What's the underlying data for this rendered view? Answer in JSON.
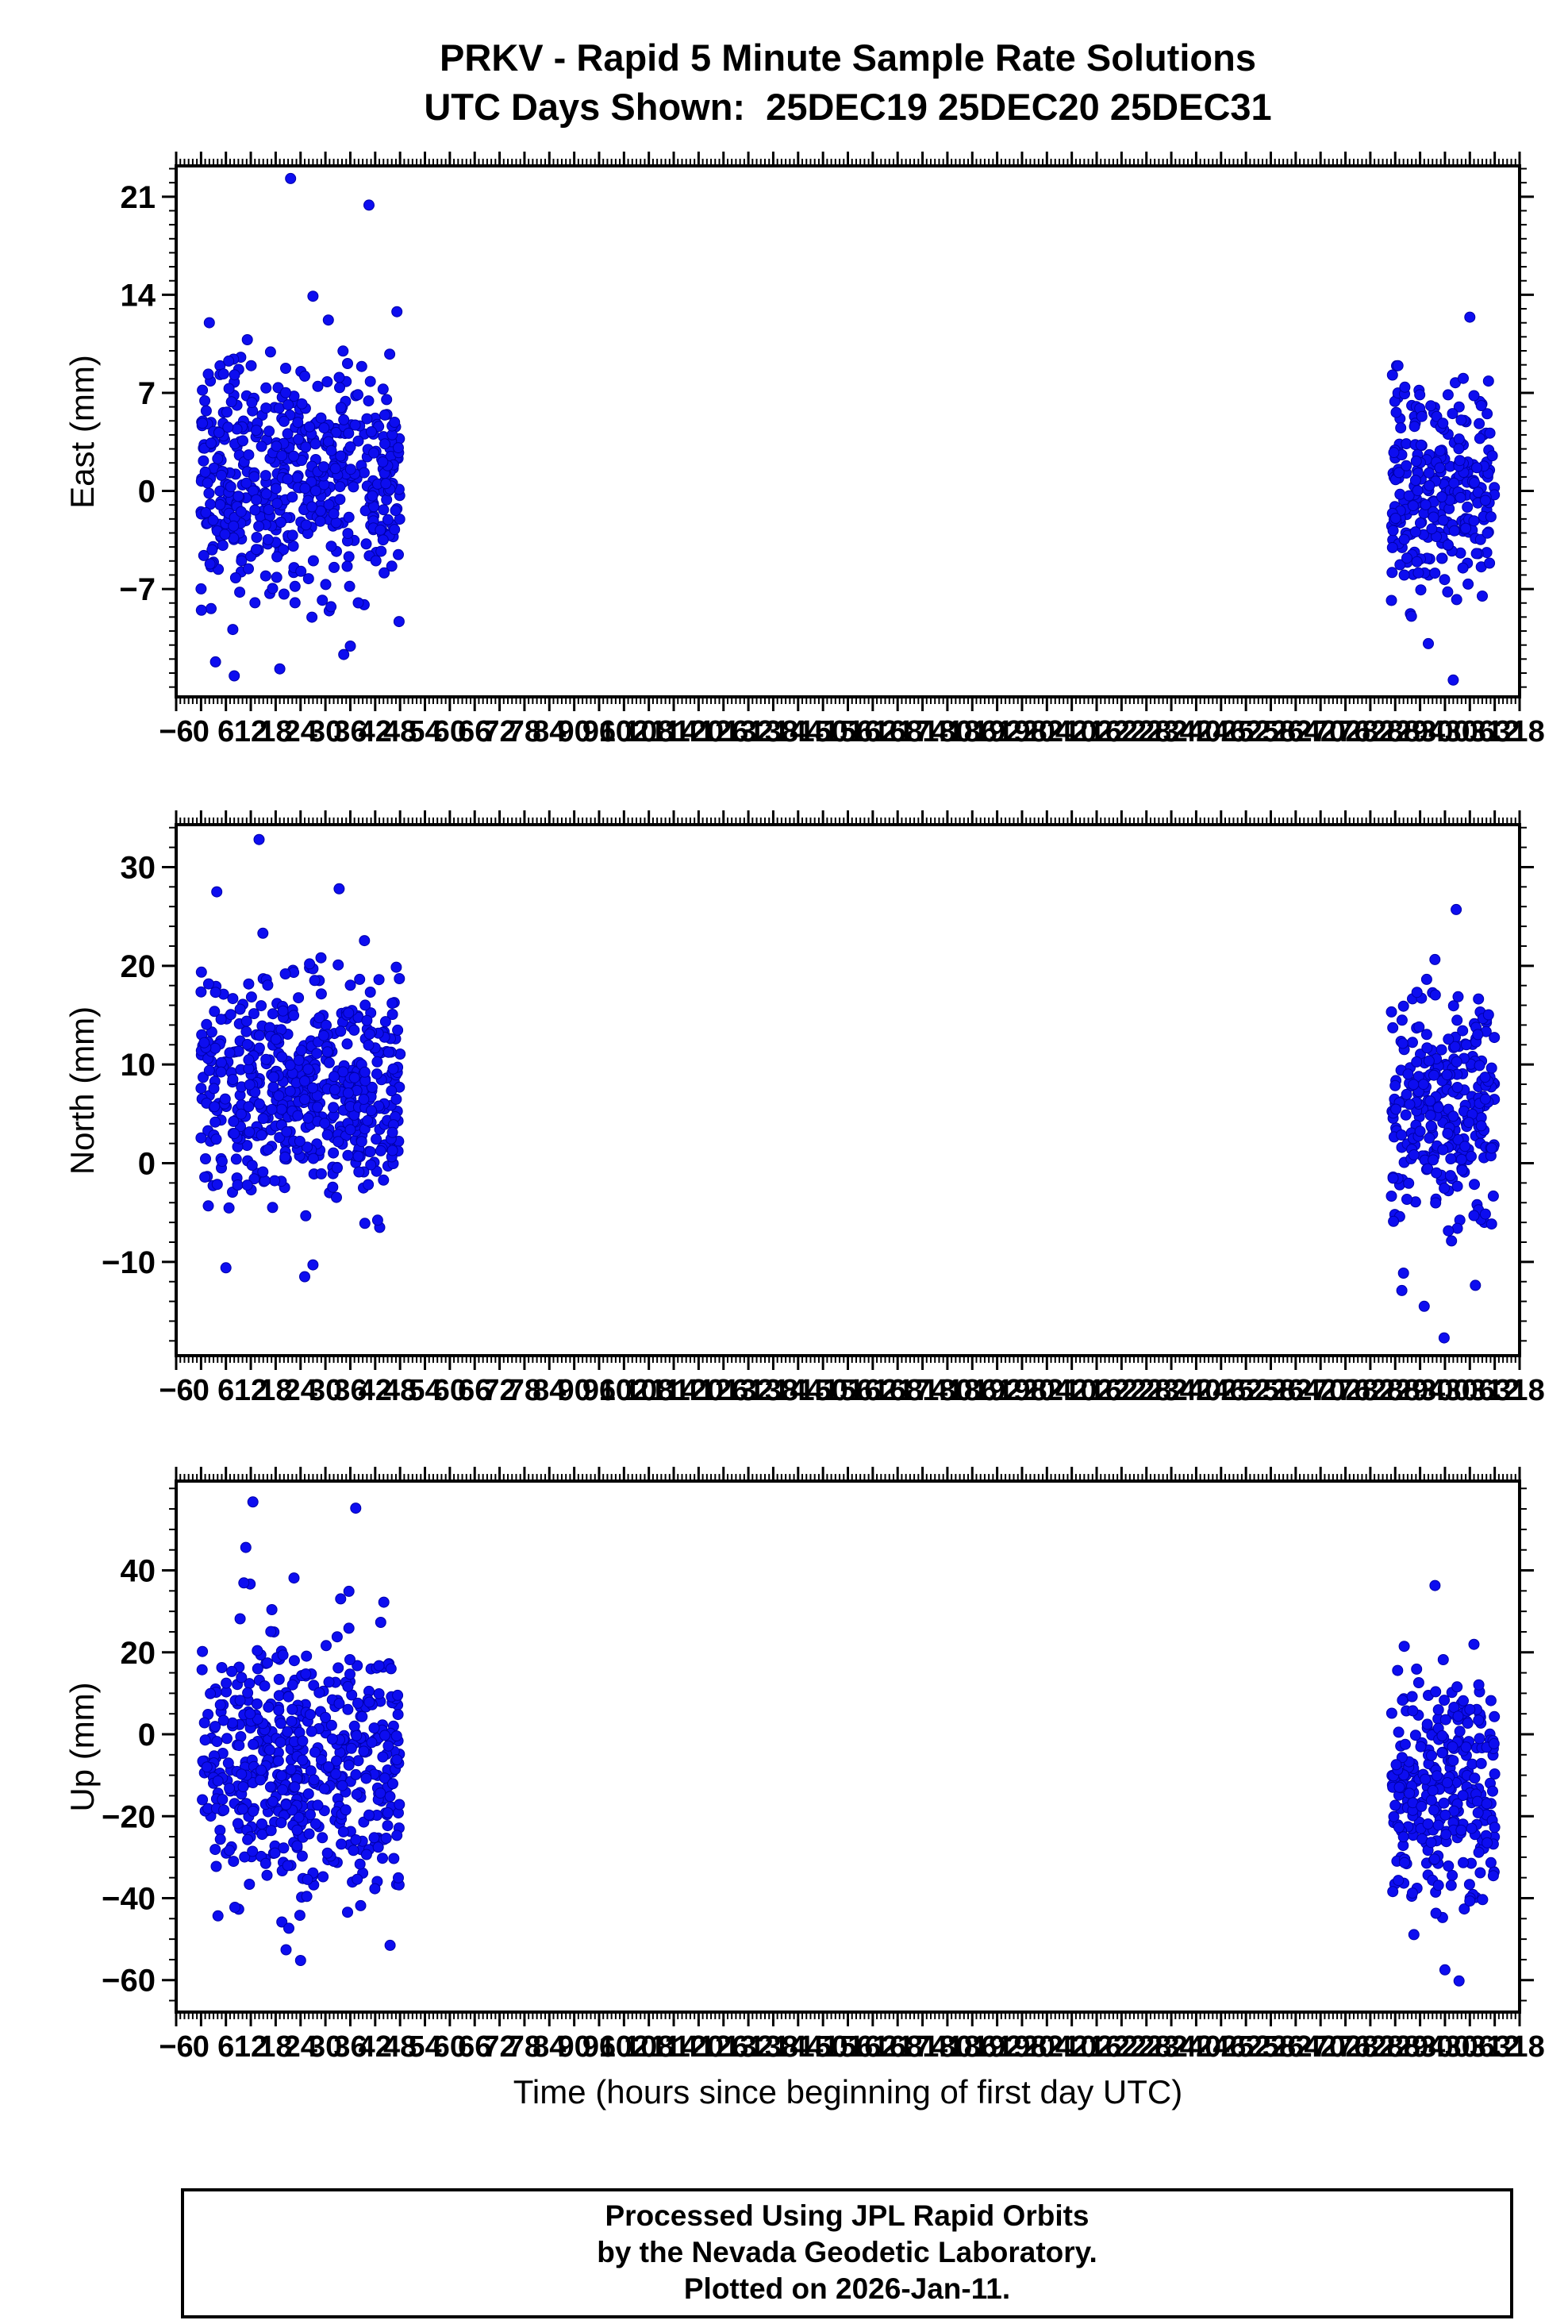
{
  "title": {
    "line1": "PRKV - Rapid 5 Minute Sample Rate Solutions",
    "line2": "UTC Days Shown:  25DEC19 25DEC20 25DEC31"
  },
  "footer": {
    "line1": "Processed Using JPL Rapid Orbits",
    "line2": "by the Nevada Geodetic Laboratory.",
    "line3": "Plotted on 2026-Jan-11."
  },
  "chart_data": {
    "type": "scatter",
    "xlabel": "Time (hours since beginning of first day UTC)",
    "x_axis": {
      "min": -6,
      "max": 318,
      "major": 6,
      "minor": 1
    },
    "marker": {
      "color": "#0d0df0",
      "edge": "#0000a8",
      "radius_px": 6.5
    },
    "panels": [
      {
        "id": "east",
        "ylabel": "East (mm)",
        "ylim": [
          -14.7,
          23.2
        ],
        "yticks": [
          -7,
          0,
          7,
          14,
          21
        ],
        "yminor": 1,
        "clusters": [
          {
            "t_range": [
              0,
              48
            ],
            "n": 540,
            "mean": 0.8,
            "sd": 4.0,
            "clamp": [
              -12.5,
              12.8
            ],
            "seed": 11
          },
          {
            "t_range": [
              287,
              312
            ],
            "n": 280,
            "mean": 0.5,
            "sd": 3.8,
            "clamp": [
              -9.5,
              9.0
            ],
            "seed": 12
          }
        ],
        "outliers": [
          [
            21.6,
            22.3
          ],
          [
            40.5,
            20.4
          ],
          [
            27,
            13.9
          ],
          [
            30.7,
            12.2
          ],
          [
            3.5,
            -12.2
          ],
          [
            19,
            -12.7
          ],
          [
            8,
            -13.2
          ],
          [
            306,
            12.4
          ],
          [
            302,
            -13.5
          ],
          [
            296,
            -10.9
          ]
        ]
      },
      {
        "id": "north",
        "ylabel": "North (mm)",
        "ylim": [
          -19.5,
          34.3
        ],
        "yticks": [
          -10,
          0,
          10,
          20,
          30
        ],
        "yminor": 2,
        "clusters": [
          {
            "t_range": [
              0,
              48
            ],
            "n": 540,
            "mean": 8.0,
            "sd": 5.8,
            "clamp": [
              -7.5,
              24.5
            ],
            "seed": 21
          },
          {
            "t_range": [
              287,
              312
            ],
            "n": 280,
            "mean": 6.0,
            "sd": 5.5,
            "clamp": [
              -12.5,
              23.0
            ],
            "seed": 22
          }
        ],
        "outliers": [
          [
            14,
            32.8
          ],
          [
            3.8,
            27.5
          ],
          [
            33.3,
            27.8
          ],
          [
            27,
            -10.3
          ],
          [
            6,
            -10.6
          ],
          [
            25,
            -11.5
          ],
          [
            302.7,
            25.7
          ],
          [
            299.8,
            -17.7
          ],
          [
            289.6,
            -12.9
          ],
          [
            295,
            -14.5
          ]
        ]
      },
      {
        "id": "up",
        "ylabel": "Up (mm)",
        "ylim": [
          -67.8,
          61.8
        ],
        "yticks": [
          -60,
          -40,
          -20,
          0,
          20,
          40
        ],
        "yminor": 5,
        "clusters": [
          {
            "t_range": [
              0,
              48
            ],
            "n": 540,
            "mean": -8.0,
            "sd": 16.0,
            "clamp": [
              -48,
              40
            ],
            "seed": 31
          },
          {
            "t_range": [
              287,
              312
            ],
            "n": 280,
            "mean": -13.0,
            "sd": 14.0,
            "clamp": [
              -45,
              30
            ],
            "seed": 32
          }
        ],
        "outliers": [
          [
            12.5,
            56.7
          ],
          [
            37.3,
            55.2
          ],
          [
            10.8,
            45.6
          ],
          [
            20.5,
            -52.6
          ],
          [
            24,
            -55.2
          ],
          [
            45.6,
            -51.5
          ],
          [
            297.6,
            36.3
          ],
          [
            303.4,
            -60.2
          ],
          [
            292.5,
            -48.9
          ],
          [
            306,
            -40.7
          ],
          [
            300,
            -57.5
          ]
        ]
      }
    ]
  }
}
